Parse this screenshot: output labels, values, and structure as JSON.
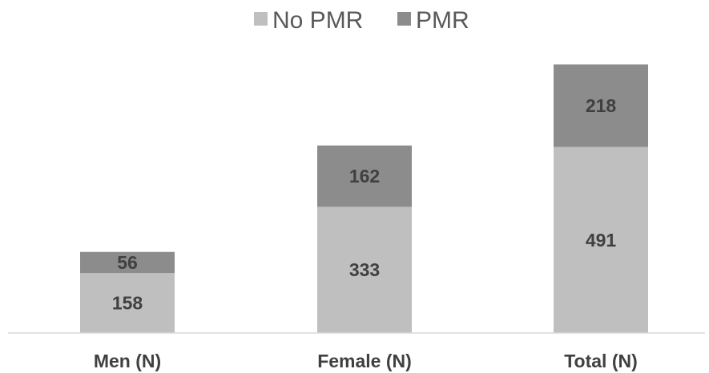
{
  "chart_data": {
    "type": "bar",
    "stacked": true,
    "categories": [
      "Men (N)",
      "Female (N)",
      "Total (N)"
    ],
    "series": [
      {
        "name": "No PMR",
        "values": [
          158,
          333,
          491
        ],
        "color": "#bfbfbf"
      },
      {
        "name": "PMR",
        "values": [
          56,
          162,
          218
        ],
        "color": "#8c8c8c"
      }
    ],
    "ylim": [
      0,
      710
    ],
    "grid": false,
    "legend": "top-center",
    "axis_color": "#d9d9d9"
  }
}
